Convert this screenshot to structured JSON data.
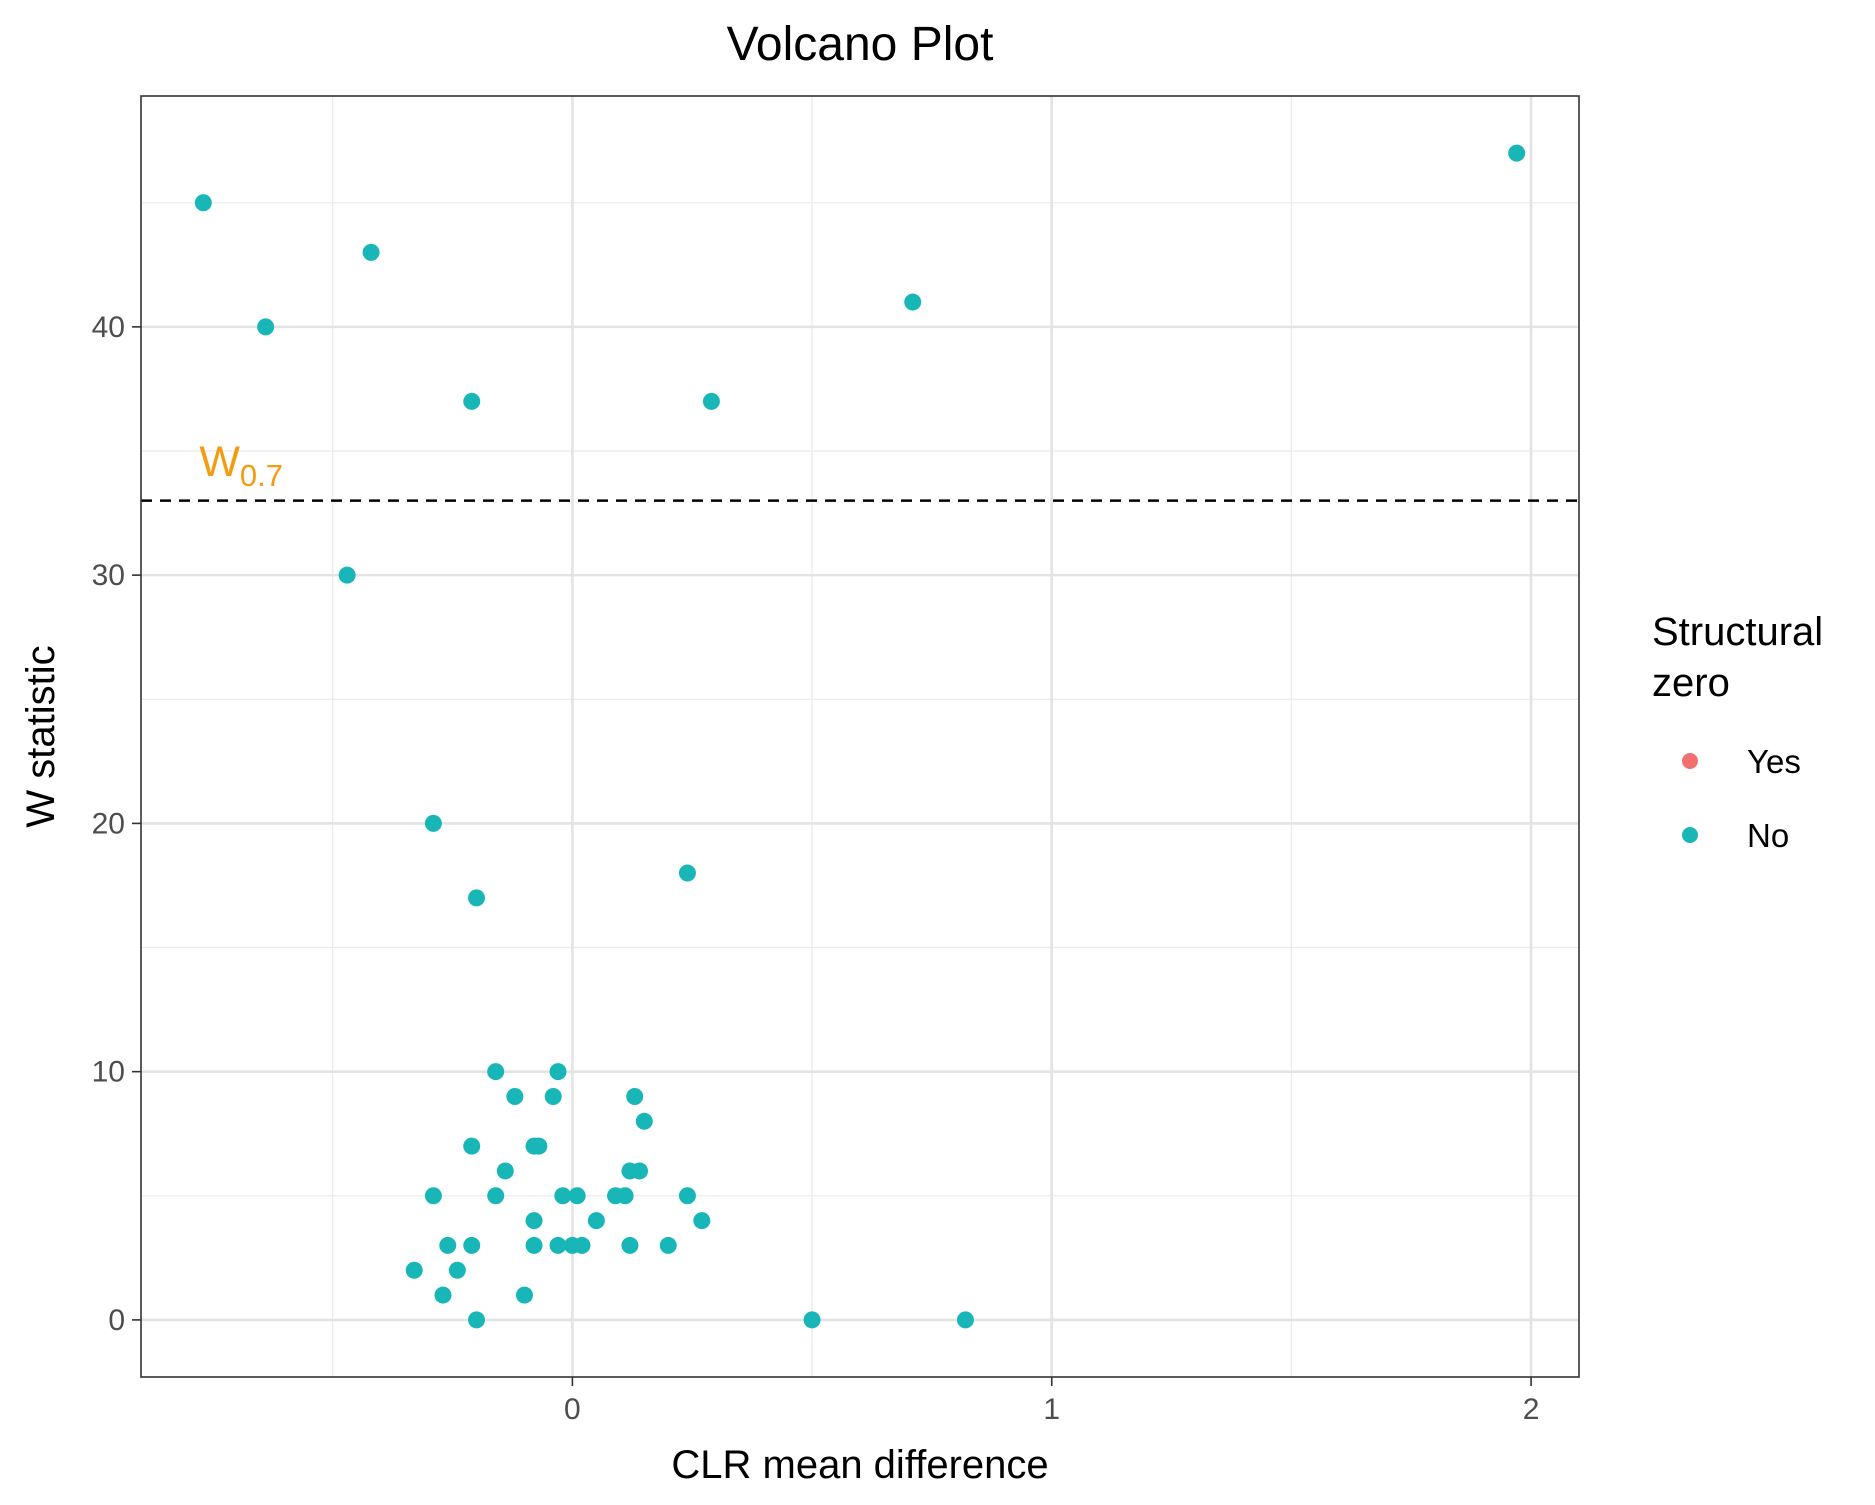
{
  "chart_data": {
    "type": "scatter",
    "title": "Volcano Plot",
    "xlabel": "CLR mean difference",
    "ylabel": "W statistic",
    "xlim": [
      -0.9,
      2.1
    ],
    "ylim": [
      -2.3,
      49.3
    ],
    "x_ticks": [
      {
        "value": 0,
        "label": "0"
      },
      {
        "value": 1,
        "label": "1"
      },
      {
        "value": 2,
        "label": "2"
      }
    ],
    "y_ticks": [
      {
        "value": 0,
        "label": "0"
      },
      {
        "value": 10,
        "label": "10"
      },
      {
        "value": 20,
        "label": "20"
      },
      {
        "value": 30,
        "label": "30"
      },
      {
        "value": 40,
        "label": "40"
      }
    ],
    "grid": true,
    "threshold": {
      "value": 33,
      "label_main": "W",
      "label_sub": "0.7",
      "label_x": -0.77,
      "label_y": 34.6,
      "color": "#F39C12",
      "line_style": "dashed"
    },
    "legend": {
      "title_lines": [
        "Structural",
        "zero"
      ],
      "position": "right",
      "entries": [
        {
          "name": "Yes",
          "color": "#F07170"
        },
        {
          "name": "No",
          "color": "#19B6B8"
        }
      ]
    },
    "series": [
      {
        "name": "No",
        "color": "#19B6B8",
        "points": [
          {
            "x": 1.97,
            "y": 47
          },
          {
            "x": -0.77,
            "y": 45
          },
          {
            "x": -0.42,
            "y": 43
          },
          {
            "x": 0.71,
            "y": 41
          },
          {
            "x": -0.64,
            "y": 40
          },
          {
            "x": -0.21,
            "y": 37
          },
          {
            "x": 0.29,
            "y": 37
          },
          {
            "x": -0.47,
            "y": 30
          },
          {
            "x": -0.29,
            "y": 20
          },
          {
            "x": 0.24,
            "y": 18
          },
          {
            "x": -0.2,
            "y": 17
          },
          {
            "x": -0.16,
            "y": 10
          },
          {
            "x": -0.03,
            "y": 10
          },
          {
            "x": -0.12,
            "y": 9
          },
          {
            "x": -0.04,
            "y": 9
          },
          {
            "x": 0.13,
            "y": 9
          },
          {
            "x": 0.15,
            "y": 8
          },
          {
            "x": -0.21,
            "y": 7
          },
          {
            "x": -0.08,
            "y": 7
          },
          {
            "x": -0.07,
            "y": 7
          },
          {
            "x": -0.14,
            "y": 6
          },
          {
            "x": 0.12,
            "y": 6
          },
          {
            "x": 0.14,
            "y": 6
          },
          {
            "x": -0.29,
            "y": 5
          },
          {
            "x": -0.16,
            "y": 5
          },
          {
            "x": -0.02,
            "y": 5
          },
          {
            "x": 0.01,
            "y": 5
          },
          {
            "x": 0.09,
            "y": 5
          },
          {
            "x": 0.11,
            "y": 5
          },
          {
            "x": 0.24,
            "y": 5
          },
          {
            "x": -0.08,
            "y": 4
          },
          {
            "x": 0.05,
            "y": 4
          },
          {
            "x": 0.27,
            "y": 4
          },
          {
            "x": -0.26,
            "y": 3
          },
          {
            "x": -0.21,
            "y": 3
          },
          {
            "x": -0.08,
            "y": 3
          },
          {
            "x": -0.03,
            "y": 3
          },
          {
            "x": 0.0,
            "y": 3
          },
          {
            "x": 0.02,
            "y": 3
          },
          {
            "x": 0.12,
            "y": 3
          },
          {
            "x": 0.2,
            "y": 3
          },
          {
            "x": -0.33,
            "y": 2
          },
          {
            "x": -0.24,
            "y": 2
          },
          {
            "x": -0.27,
            "y": 1
          },
          {
            "x": -0.1,
            "y": 1
          },
          {
            "x": -0.2,
            "y": 0
          },
          {
            "x": 0.5,
            "y": 0
          },
          {
            "x": 0.82,
            "y": 0
          }
        ]
      }
    ]
  }
}
